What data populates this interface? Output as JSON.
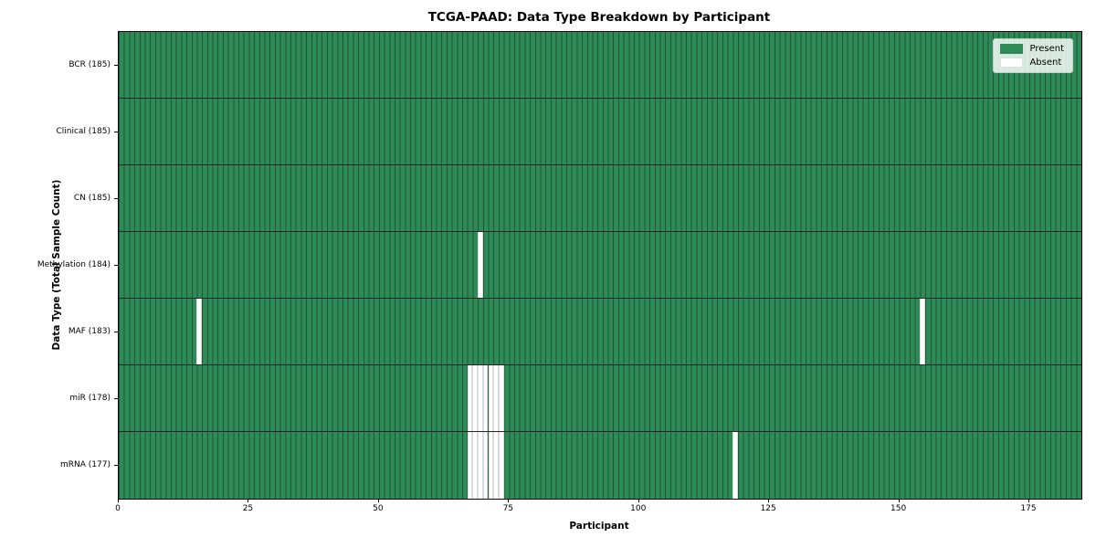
{
  "title": "TCGA-PAAD: Data Type Breakdown by Participant",
  "xlabel": "Participant",
  "ylabel": "Data Type (Total Sample Count)",
  "legend": {
    "present_label": "Present",
    "absent_label": "Absent"
  },
  "colors": {
    "present": "#2e8b57",
    "absent": "#ffffff",
    "grid_line_on_green": "rgba(0,0,0,0.38)",
    "row_separator": "rgba(0,0,0,0.85)",
    "legend_background": "rgba(255,255,255,0.82)",
    "legend_border": "#cccccc"
  },
  "chart_data": {
    "type": "heatmap",
    "title": "TCGA-PAAD: Data Type Breakdown by Participant",
    "xlabel": "Participant",
    "ylabel": "Data Type (Total Sample Count)",
    "legend_entries": [
      "Present",
      "Absent"
    ],
    "legend_position": "upper right",
    "n_participants": 185,
    "xlim": [
      0,
      185
    ],
    "x_ticks": [
      0,
      25,
      50,
      75,
      100,
      125,
      150,
      175
    ],
    "rows": [
      {
        "label": "BCR (185)",
        "total": 185,
        "absent_participants": []
      },
      {
        "label": "Clinical (185)",
        "total": 185,
        "absent_participants": []
      },
      {
        "label": "CN (185)",
        "total": 185,
        "absent_participants": []
      },
      {
        "label": "Methylation (184)",
        "total": 184,
        "absent_participants": [
          69
        ]
      },
      {
        "label": "MAF (183)",
        "total": 183,
        "absent_participants": [
          15,
          154
        ]
      },
      {
        "label": "miR (178)",
        "total": 178,
        "absent_participants": [
          67,
          68,
          69,
          70,
          71,
          72,
          73
        ]
      },
      {
        "label": "mRNA (177)",
        "total": 177,
        "absent_participants": [
          67,
          68,
          69,
          70,
          71,
          72,
          73,
          118
        ]
      }
    ]
  }
}
